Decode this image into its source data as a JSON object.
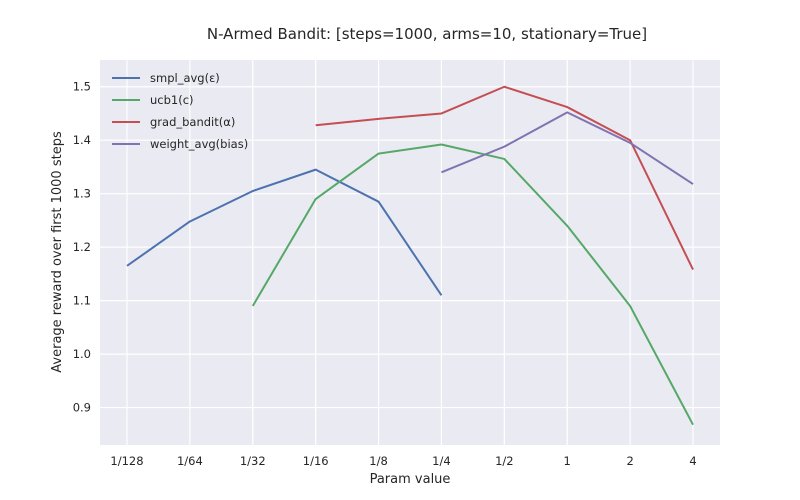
{
  "chart_data": {
    "type": "line",
    "title": "N-Armed Bandit: [steps=1000, arms=10, stationary=True]",
    "xlabel": "Param value",
    "ylabel": "Average reward over first 1000 steps",
    "categories": [
      "1/128",
      "1/64",
      "1/32",
      "1/16",
      "1/8",
      "1/4",
      "1/2",
      "1",
      "2",
      "4"
    ],
    "ylim": [
      0.83,
      1.55
    ],
    "yticks": [
      0.9,
      1.0,
      1.1,
      1.2,
      1.3,
      1.4,
      1.5
    ],
    "ytick_labels": [
      "0.9",
      "1.0",
      "1.1",
      "1.2",
      "1.3",
      "1.4",
      "1.5"
    ],
    "grid": true,
    "legend_position": "top-left",
    "background": "#EAEAF2",
    "series": [
      {
        "name": "smpl_avg(ε)",
        "color": "#4C72B0",
        "values": [
          1.165,
          1.248,
          1.305,
          1.345,
          1.285,
          1.11,
          null,
          null,
          null,
          null
        ]
      },
      {
        "name": "ucb1(c)",
        "color": "#55A868",
        "values": [
          null,
          null,
          1.09,
          1.29,
          1.375,
          1.392,
          1.365,
          1.24,
          1.09,
          0.868
        ]
      },
      {
        "name": "grad_bandit(α)",
        "color": "#C44E52",
        "values": [
          null,
          null,
          null,
          1.428,
          1.44,
          1.45,
          1.5,
          1.462,
          1.4,
          1.158
        ]
      },
      {
        "name": "weight_avg(bias)",
        "color": "#8172B2",
        "values": [
          null,
          null,
          null,
          null,
          null,
          1.34,
          1.388,
          1.452,
          1.395,
          1.318
        ]
      }
    ]
  }
}
